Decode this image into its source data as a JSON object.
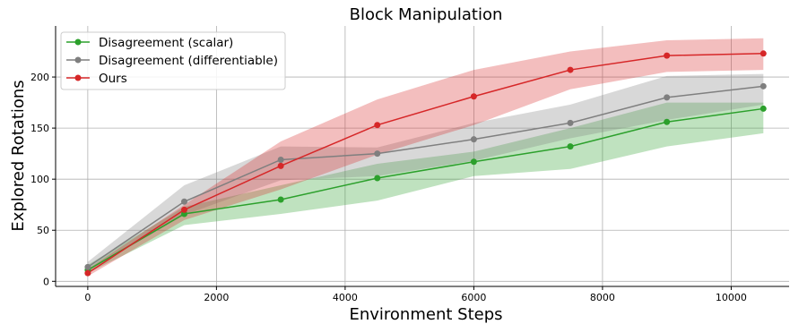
{
  "chart_data": {
    "type": "line",
    "title": "Block Manipulation",
    "xlabel": "Environment Steps",
    "ylabel": "Explored Rotations",
    "xlim": [
      -500,
      10900
    ],
    "ylim": [
      -5,
      250
    ],
    "xticks": [
      0,
      2000,
      4000,
      6000,
      8000,
      10000
    ],
    "yticks": [
      0,
      50,
      100,
      150,
      200
    ],
    "grid": true,
    "legend_position": "top-left",
    "x": [
      0,
      1500,
      3000,
      4500,
      6000,
      7500,
      9000,
      10500
    ],
    "series": [
      {
        "name": "Disagreement (scalar)",
        "color": "#2ca02c",
        "values": [
          11,
          66,
          80,
          101,
          117,
          132,
          156,
          169
        ],
        "lower": [
          8,
          55,
          66,
          79,
          103,
          110,
          132,
          145
        ],
        "upper": [
          16,
          73,
          94,
          115,
          127,
          150,
          175,
          175
        ]
      },
      {
        "name": "Disagreement (differentiable)",
        "color": "#7f7f7f",
        "values": [
          14,
          78,
          119,
          125,
          139,
          155,
          180,
          191
        ],
        "lower": [
          10,
          65,
          99,
          103,
          118,
          140,
          158,
          173
        ],
        "upper": [
          19,
          94,
          132,
          131,
          155,
          173,
          201,
          203
        ]
      },
      {
        "name": "Ours",
        "color": "#d62728",
        "values": [
          8,
          70,
          113,
          153,
          181,
          207,
          221,
          223
        ],
        "lower": [
          5,
          60,
          90,
          124,
          153,
          188,
          205,
          207
        ],
        "upper": [
          12,
          75,
          137,
          178,
          207,
          225,
          236,
          238
        ]
      }
    ]
  }
}
